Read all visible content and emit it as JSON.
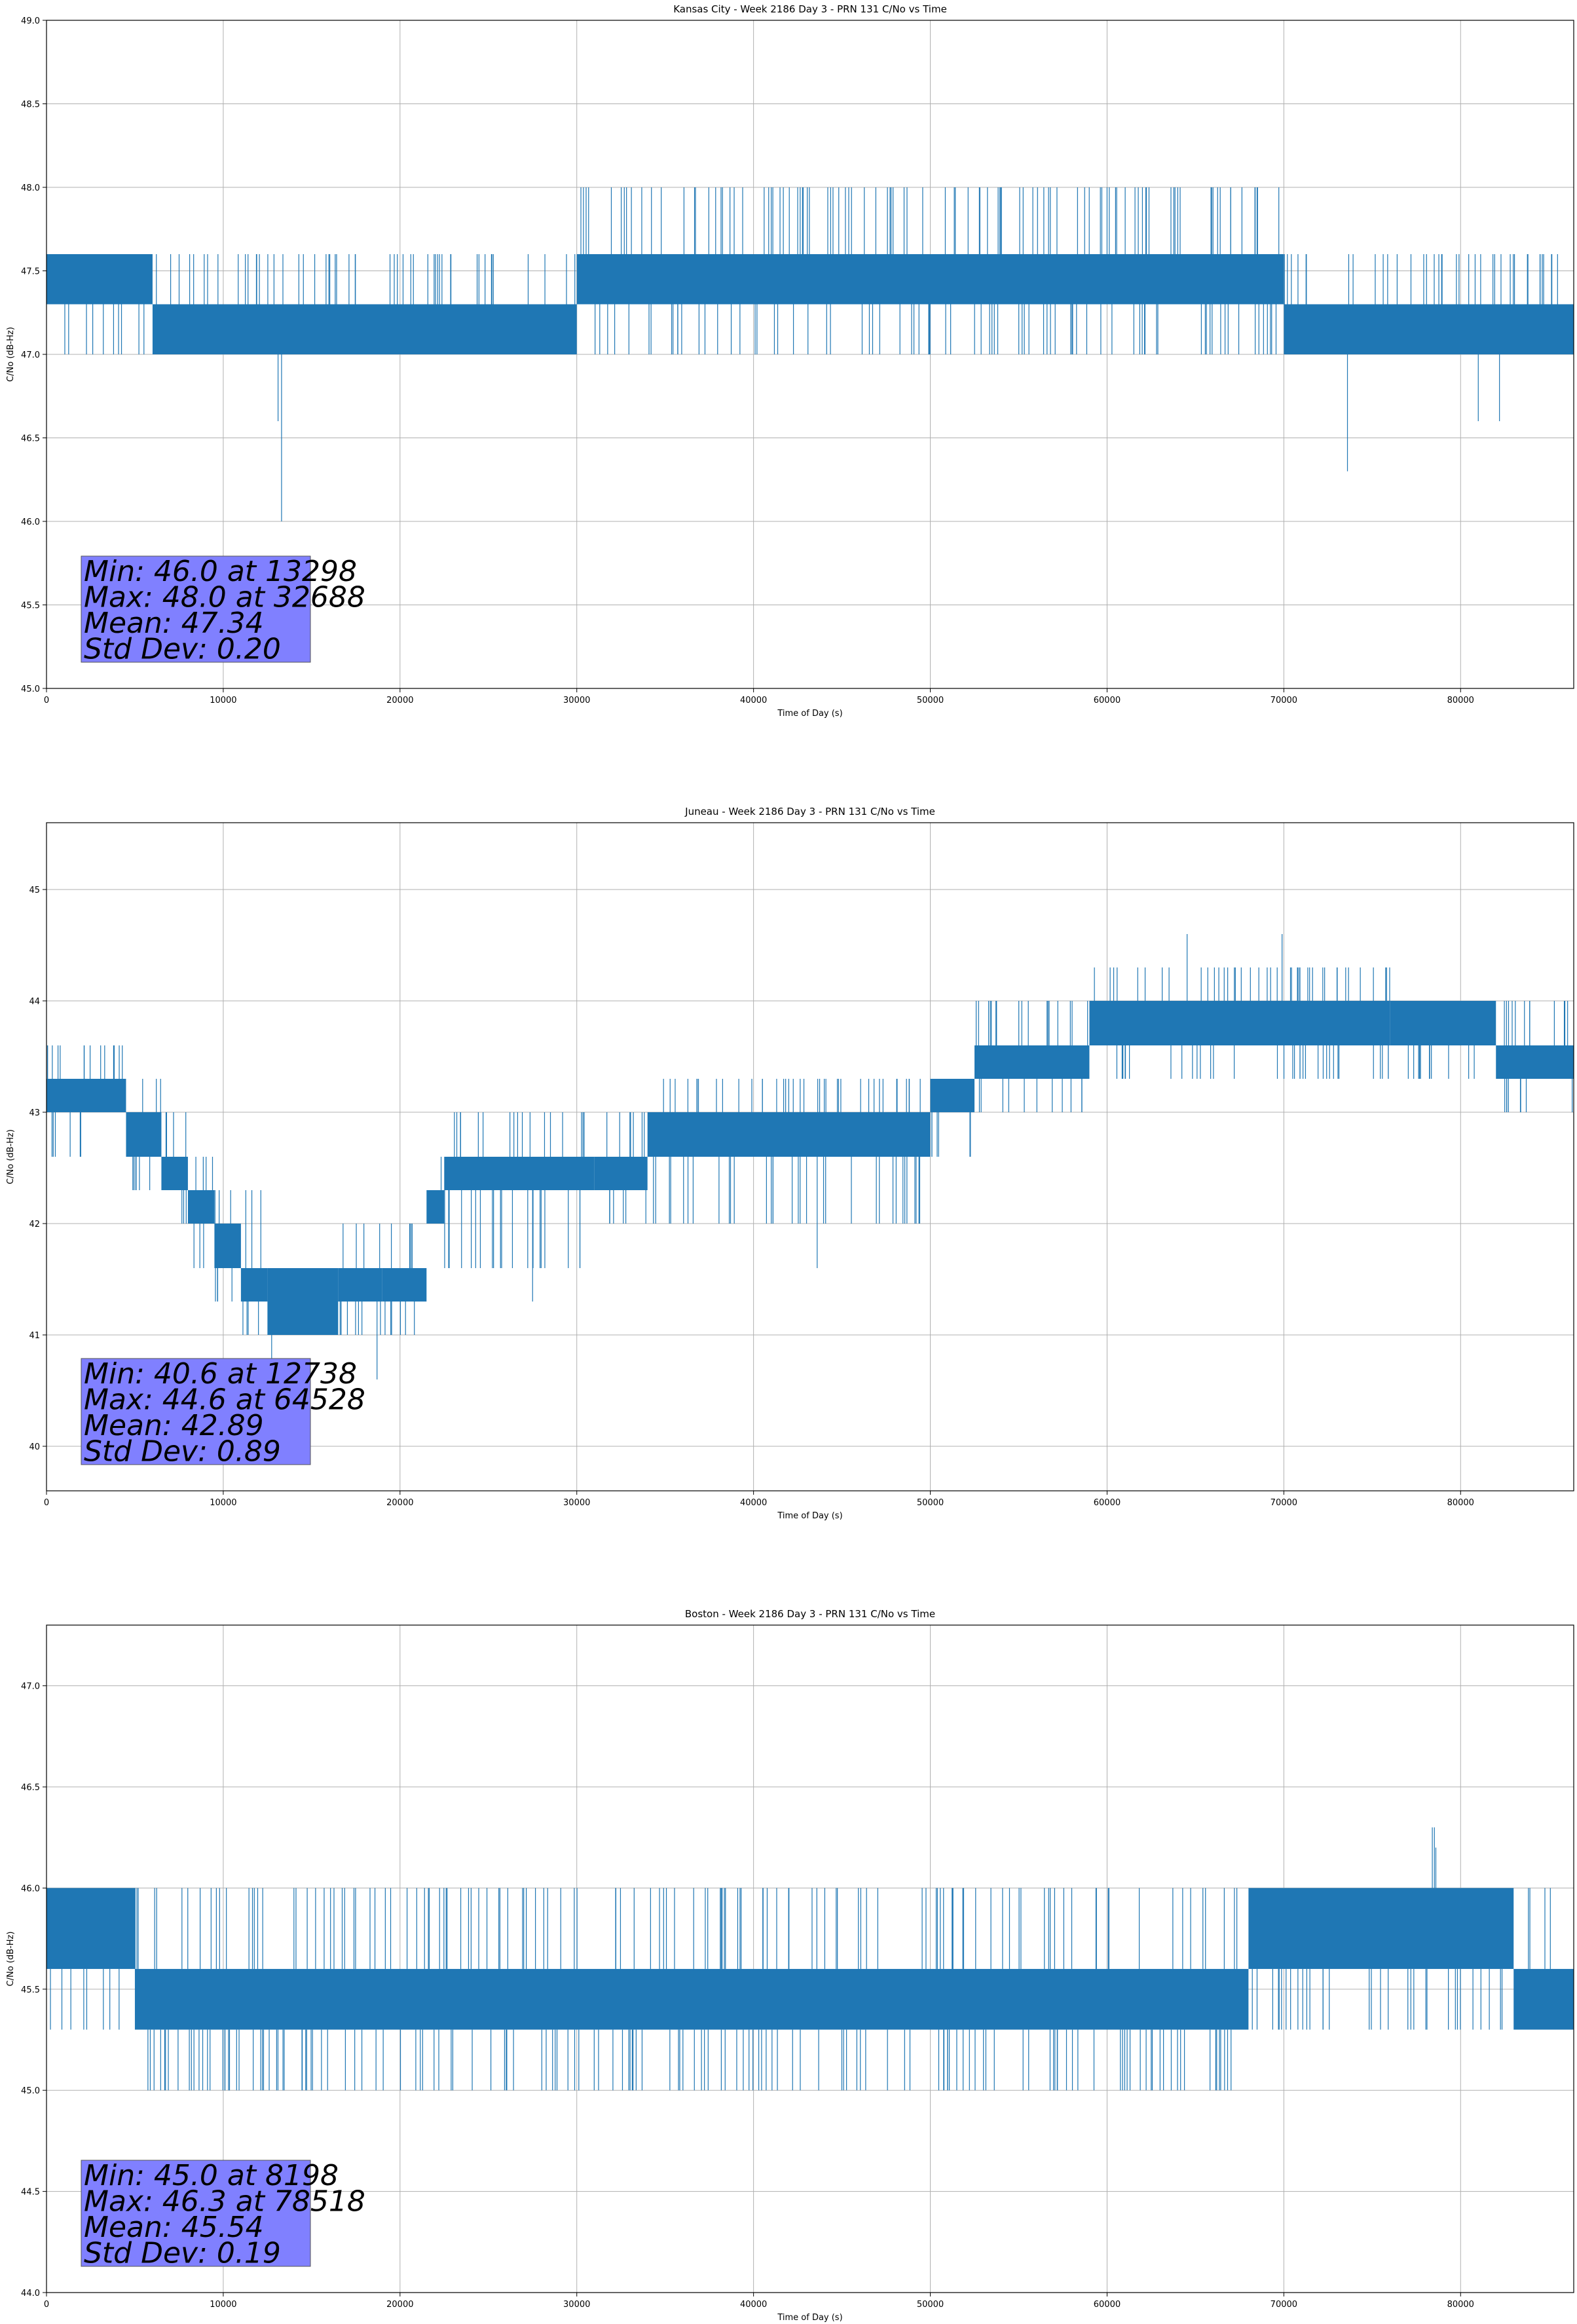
{
  "figure": {
    "line_color": "#1f77b4",
    "stats_box_color": "#8080ff",
    "grid": true
  },
  "chart_data": [
    {
      "type": "line",
      "title": "Kansas City - Week 2186 Day 3 - PRN 131 C/No vs Time",
      "xlabel": "Time of Day (s)",
      "ylabel": "C/No (dB-Hz)",
      "xlim": [
        0,
        86400
      ],
      "ylim": [
        45.0,
        49.0
      ],
      "xticks": [
        0,
        10000,
        20000,
        30000,
        40000,
        50000,
        60000,
        70000,
        80000
      ],
      "xtick_labels": [
        "0",
        "10000",
        "20000",
        "30000",
        "40000",
        "50000",
        "60000",
        "70000",
        "80000"
      ],
      "yticks": [
        45.0,
        45.5,
        46.0,
        46.5,
        47.0,
        47.5,
        48.0,
        48.5,
        49.0
      ],
      "ytick_labels": [
        "45.0",
        "45.5",
        "46.0",
        "46.5",
        "47.0",
        "47.5",
        "48.0",
        "48.5",
        "49.0"
      ],
      "stats": [
        "Min: 46.0 at 13298",
        "Max: 48.0 at 32688",
        "Mean: 47.34",
        "Std Dev: 0.20"
      ],
      "min": {
        "x": 13298,
        "y": 46.0
      },
      "max": {
        "x": 32688,
        "y": 48.0
      },
      "spikes": [
        {
          "x": 13100,
          "y": 46.6
        },
        {
          "x": 73600,
          "y": 46.3
        },
        {
          "x": 81000,
          "y": 46.6
        },
        {
          "x": 82200,
          "y": 46.6
        },
        {
          "x": 40600,
          "y": 48.0
        },
        {
          "x": 55800,
          "y": 48.0
        },
        {
          "x": 60000,
          "y": 48.0
        },
        {
          "x": 62000,
          "y": 48.0
        },
        {
          "x": 64000,
          "y": 48.0
        }
      ],
      "segments": [
        {
          "x0": 0,
          "x1": 6000,
          "y_low": 47.3,
          "y_high": 47.6,
          "noise_low": 47.0,
          "noise_high": 47.6
        },
        {
          "x0": 6000,
          "x1": 30000,
          "y_low": 47.0,
          "y_high": 47.3,
          "noise_low": 47.0,
          "noise_high": 47.6
        },
        {
          "x0": 30000,
          "x1": 70000,
          "y_low": 47.3,
          "y_high": 47.6,
          "noise_low": 47.0,
          "noise_high": 48.0
        },
        {
          "x0": 70000,
          "x1": 86400,
          "y_low": 47.0,
          "y_high": 47.3,
          "noise_low": 47.0,
          "noise_high": 47.6
        }
      ]
    },
    {
      "type": "line",
      "title": "Juneau - Week 2186 Day 3 - PRN 131 C/No vs Time",
      "xlabel": "Time of Day (s)",
      "ylabel": "C/No (dB-Hz)",
      "xlim": [
        0,
        86400
      ],
      "ylim": [
        39.6,
        45.6
      ],
      "xticks": [
        0,
        10000,
        20000,
        30000,
        40000,
        50000,
        60000,
        70000,
        80000
      ],
      "xtick_labels": [
        "0",
        "10000",
        "20000",
        "30000",
        "40000",
        "50000",
        "60000",
        "70000",
        "80000"
      ],
      "yticks": [
        40,
        41,
        42,
        43,
        44,
        45
      ],
      "ytick_labels": [
        "40",
        "41",
        "42",
        "43",
        "44",
        "45"
      ],
      "stats": [
        "Min: 40.6 at 12738",
        "Max: 44.6 at 64528",
        "Mean: 42.89",
        "Std Dev: 0.89"
      ],
      "min": {
        "x": 12738,
        "y": 40.6
      },
      "max": {
        "x": 64528,
        "y": 44.6
      },
      "spikes": [
        {
          "x": 18700,
          "y": 40.6
        },
        {
          "x": 43600,
          "y": 41.6
        },
        {
          "x": 27500,
          "y": 41.3
        },
        {
          "x": 69900,
          "y": 44.6
        }
      ],
      "segments": [
        {
          "x0": 0,
          "x1": 4500,
          "y_low": 43.0,
          "y_high": 43.3,
          "noise_low": 42.6,
          "noise_high": 43.6
        },
        {
          "x0": 4500,
          "x1": 6500,
          "y_low": 42.6,
          "y_high": 43.0,
          "noise_low": 42.3,
          "noise_high": 43.3
        },
        {
          "x0": 6500,
          "x1": 8000,
          "y_low": 42.3,
          "y_high": 42.6,
          "noise_low": 42.0,
          "noise_high": 43.0
        },
        {
          "x0": 8000,
          "x1": 9500,
          "y_low": 42.0,
          "y_high": 42.3,
          "noise_low": 41.6,
          "noise_high": 42.6
        },
        {
          "x0": 9500,
          "x1": 11000,
          "y_low": 41.6,
          "y_high": 42.0,
          "noise_low": 41.3,
          "noise_high": 42.3
        },
        {
          "x0": 11000,
          "x1": 12500,
          "y_low": 41.3,
          "y_high": 41.6,
          "noise_low": 41.0,
          "noise_high": 42.3
        },
        {
          "x0": 12500,
          "x1": 16500,
          "y_low": 41.0,
          "y_high": 41.6,
          "noise_low": 41.0,
          "noise_high": 41.6
        },
        {
          "x0": 16500,
          "x1": 19000,
          "y_low": 41.3,
          "y_high": 41.6,
          "noise_low": 41.0,
          "noise_high": 42.0
        },
        {
          "x0": 19000,
          "x1": 21500,
          "y_low": 41.3,
          "y_high": 41.6,
          "noise_low": 41.0,
          "noise_high": 42.0
        },
        {
          "x0": 21500,
          "x1": 22500,
          "y_low": 42.0,
          "y_high": 42.3,
          "noise_low": 42.0,
          "noise_high": 42.6
        },
        {
          "x0": 22500,
          "x1": 31000,
          "y_low": 42.3,
          "y_high": 42.6,
          "noise_low": 41.6,
          "noise_high": 43.0
        },
        {
          "x0": 31000,
          "x1": 34000,
          "y_low": 42.3,
          "y_high": 42.6,
          "noise_low": 42.0,
          "noise_high": 43.0
        },
        {
          "x0": 34000,
          "x1": 50000,
          "y_low": 42.6,
          "y_high": 43.0,
          "noise_low": 42.0,
          "noise_high": 43.3
        },
        {
          "x0": 50000,
          "x1": 52500,
          "y_low": 43.0,
          "y_high": 43.3,
          "noise_low": 42.6,
          "noise_high": 43.3
        },
        {
          "x0": 52500,
          "x1": 59000,
          "y_low": 43.3,
          "y_high": 43.6,
          "noise_low": 43.0,
          "noise_high": 44.0
        },
        {
          "x0": 59000,
          "x1": 76000,
          "y_low": 43.6,
          "y_high": 44.0,
          "noise_low": 43.3,
          "noise_high": 44.3
        },
        {
          "x0": 76000,
          "x1": 82000,
          "y_low": 43.6,
          "y_high": 44.0,
          "noise_low": 43.3,
          "noise_high": 44.0
        },
        {
          "x0": 82000,
          "x1": 86400,
          "y_low": 43.3,
          "y_high": 43.6,
          "noise_low": 43.0,
          "noise_high": 44.0
        }
      ]
    },
    {
      "type": "line",
      "title": "Boston - Week 2186 Day 3 - PRN 131 C/No vs Time",
      "xlabel": "Time of Day (s)",
      "ylabel": "C/No (dB-Hz)",
      "xlim": [
        0,
        86400
      ],
      "ylim": [
        44.0,
        47.3
      ],
      "xticks": [
        0,
        10000,
        20000,
        30000,
        40000,
        50000,
        60000,
        70000,
        80000
      ],
      "xtick_labels": [
        "0",
        "10000",
        "20000",
        "30000",
        "40000",
        "50000",
        "60000",
        "70000",
        "80000"
      ],
      "yticks": [
        44.0,
        44.5,
        45.0,
        45.5,
        46.0,
        46.5,
        47.0
      ],
      "ytick_labels": [
        "44.0",
        "44.5",
        "45.0",
        "45.5",
        "46.0",
        "46.5",
        "47.0"
      ],
      "stats": [
        "Min: 45.0 at 8198",
        "Max: 46.3 at 78518",
        "Mean: 45.54",
        "Std Dev: 0.19"
      ],
      "min": {
        "x": 8198,
        "y": 45.0
      },
      "max": {
        "x": 78518,
        "y": 46.3
      },
      "spikes": [
        {
          "x": 78400,
          "y": 46.3
        },
        {
          "x": 78600,
          "y": 46.2
        }
      ],
      "segments": [
        {
          "x0": 0,
          "x1": 5000,
          "y_low": 45.6,
          "y_high": 46.0,
          "noise_low": 45.3,
          "noise_high": 46.0
        },
        {
          "x0": 5000,
          "x1": 68000,
          "y_low": 45.3,
          "y_high": 45.6,
          "noise_low": 45.0,
          "noise_high": 46.0
        },
        {
          "x0": 68000,
          "x1": 83000,
          "y_low": 45.6,
          "y_high": 46.0,
          "noise_low": 45.3,
          "noise_high": 46.0
        },
        {
          "x0": 83000,
          "x1": 86400,
          "y_low": 45.3,
          "y_high": 45.6,
          "noise_low": 45.3,
          "noise_high": 46.0
        }
      ]
    }
  ]
}
